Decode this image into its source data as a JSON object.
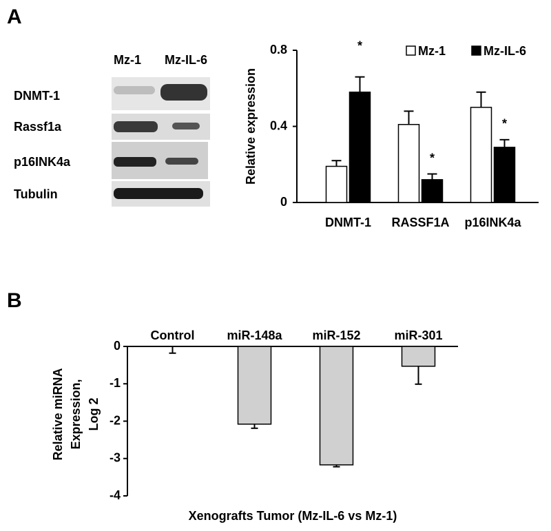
{
  "panel_labels": [
    "A",
    "B"
  ],
  "blot": {
    "lanes": [
      "Mz-1",
      "Mz-IL-6"
    ],
    "rows": [
      "DNMT-1",
      "Rassf1a",
      "p16INK4a",
      "Tubulin"
    ]
  },
  "chart_data": [
    {
      "type": "grouped_bar",
      "ylabel": "Relative expression",
      "categories": [
        "DNMT-1",
        "RASSF1A",
        "p16INK4a"
      ],
      "series": [
        {
          "name": "Mz-1",
          "color": "#ffffff",
          "values": [
            0.19,
            0.41,
            0.5
          ],
          "errors": [
            0.03,
            0.07,
            0.08
          ]
        },
        {
          "name": "Mz-IL-6",
          "color": "#000000",
          "values": [
            0.58,
            0.12,
            0.29
          ],
          "errors": [
            0.08,
            0.03,
            0.04
          ]
        }
      ],
      "significance": [
        "*",
        "*",
        "*"
      ],
      "ylim": [
        0,
        0.8
      ],
      "yticks": [
        0,
        0.4,
        0.8
      ]
    },
    {
      "type": "bar",
      "xlabel": "Xenografts Tumor (Mz-IL-6 vs Mz-1)",
      "ylabel": [
        "Relative miRNA",
        "Expression,",
        "Log 2"
      ],
      "categories": [
        "Control",
        "miR-148a",
        "miR-152",
        "miR-301"
      ],
      "values": [
        0,
        -2.08,
        -3.17,
        -0.53
      ],
      "errors": [
        0.18,
        0.11,
        0.05,
        0.48
      ],
      "color": "#d0d0d0",
      "ylim": [
        -4,
        0
      ],
      "yticks": [
        0,
        -1,
        -2,
        -3,
        -4
      ]
    }
  ]
}
